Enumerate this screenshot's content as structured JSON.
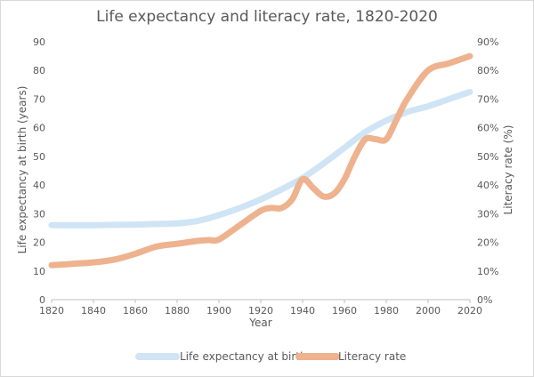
{
  "chart_data": {
    "type": "line",
    "title": "Life expectancy and literacy rate, 1820-2020",
    "xlabel": "Year",
    "ylabel_left": "Life expectancy at birth (years)",
    "ylabel_right": "Literacy rate (%)",
    "x_ticks": [
      "1820",
      "1840",
      "1860",
      "1880",
      "1900",
      "1920",
      "1940",
      "1960",
      "1980",
      "2000",
      "2020"
    ],
    "y_left_ticks": [
      "0",
      "10",
      "20",
      "30",
      "40",
      "50",
      "60",
      "70",
      "80",
      "90"
    ],
    "y_right_ticks": [
      "0%",
      "10%",
      "20%",
      "30%",
      "40%",
      "50%",
      "60%",
      "70%",
      "80%",
      "90%"
    ],
    "xlim": [
      1820,
      2020
    ],
    "ylim_left": [
      0,
      90
    ],
    "ylim_right": [
      0,
      90
    ],
    "grid": false,
    "legend_position": "bottom",
    "series": [
      {
        "name": "Life expectancy at birth",
        "axis": "left",
        "color": "#cfe4f4",
        "x": [
          1820,
          1830,
          1840,
          1850,
          1860,
          1870,
          1880,
          1890,
          1900,
          1910,
          1920,
          1930,
          1940,
          1950,
          1960,
          1970,
          1980,
          1990,
          2000,
          2010,
          2020
        ],
        "values": [
          26,
          26,
          26,
          26.1,
          26.2,
          26.4,
          26.6,
          27.5,
          29.5,
          32,
          35,
          38.5,
          42.5,
          47.5,
          53,
          58.5,
          62.5,
          65.5,
          67.5,
          70,
          72.5
        ]
      },
      {
        "name": "Literacy rate",
        "axis": "right",
        "color": "#eeb28e",
        "x": [
          1820,
          1830,
          1840,
          1850,
          1860,
          1870,
          1880,
          1890,
          1895,
          1900,
          1910,
          1920,
          1925,
          1930,
          1935,
          1940,
          1945,
          1950,
          1955,
          1960,
          1965,
          1970,
          1975,
          1980,
          1985,
          1990,
          2000,
          2010,
          2020
        ],
        "values": [
          12,
          12.5,
          13,
          14,
          16,
          18.5,
          19.5,
          20.5,
          20.8,
          21,
          26,
          31,
          32,
          32,
          35,
          42,
          39,
          36,
          37,
          42,
          50,
          56,
          56,
          56,
          63,
          70,
          80,
          82.5,
          85
        ]
      }
    ]
  }
}
